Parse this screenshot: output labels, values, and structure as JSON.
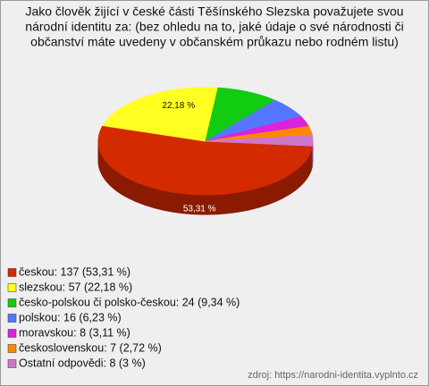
{
  "chart_data": {
    "type": "pie",
    "title": [
      "Jako člověk žijící v české části Těšínského Slezska považujete svou",
      "národní identitu za: (bez ohledu na to, jaké údaje o své národnosti či",
      "občanství máte uvedeny v občanském průkazu nebo rodném listu)"
    ],
    "categories": [
      "českou: 137 (53,31 %)",
      "slezskou: 57 (22,18 %)",
      "česko-polskou či polsko-českou: 24 (9,34 %)",
      "polskou: 16 (6,23 %)",
      "moravskou: 8 (3,11 %)",
      "československou: 7 (2,72 %)",
      "Ostatní odpovědi: 8 (3 %)"
    ],
    "values": [
      137,
      57,
      24,
      16,
      8,
      7,
      8
    ],
    "percent_labels": [
      "53,31 %",
      "22,18 %",
      null,
      null,
      null,
      null,
      null
    ],
    "colors": [
      "#d42a00",
      "#ffff22",
      "#11cc11",
      "#5577ff",
      "#dd22dd",
      "#ff8800",
      "#cc77cc"
    ],
    "source": "zdroj: https://narodni-identita.vyplnto.cz"
  }
}
